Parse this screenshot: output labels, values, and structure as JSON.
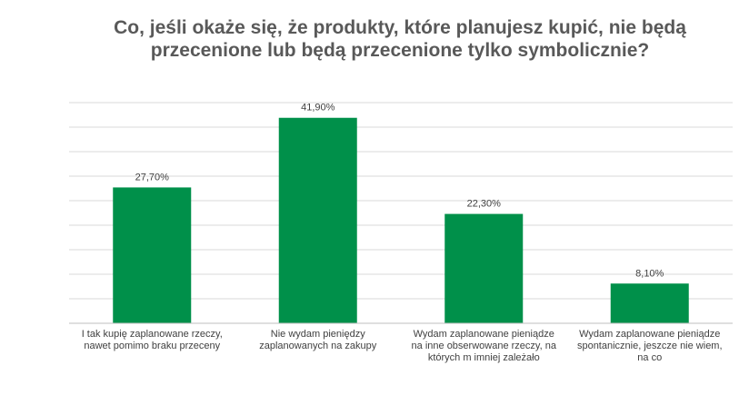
{
  "chart_data": {
    "type": "bar",
    "title": "Co, jeśli okaże się, że produkty, które planujesz kupić, nie będą przecenione lub będą przecenione tylko symbolicznie?",
    "categories": [
      "I tak kupię zaplanowane rzeczy, nawet pomimo braku przeceny",
      "Nie wydam pieniędzy zaplanowanych na zakupy",
      "Wydam zaplanowane pieniądze na inne obserwowane rzeczy, na których m imniej zależało",
      "Wydam zaplanowane pieniądze spontanicznie, jeszcze nie wiem, na co"
    ],
    "values": [
      27.7,
      41.9,
      22.3,
      8.1
    ],
    "data_labels": [
      "27,70%",
      "41,90%",
      "22,30%",
      "8,10%"
    ],
    "ylim": [
      0,
      45
    ],
    "grid": true,
    "legend": "none",
    "colors": {
      "bar": "#00904A",
      "grid": "#d9d9d9",
      "axis": "#bfbfbf"
    }
  }
}
